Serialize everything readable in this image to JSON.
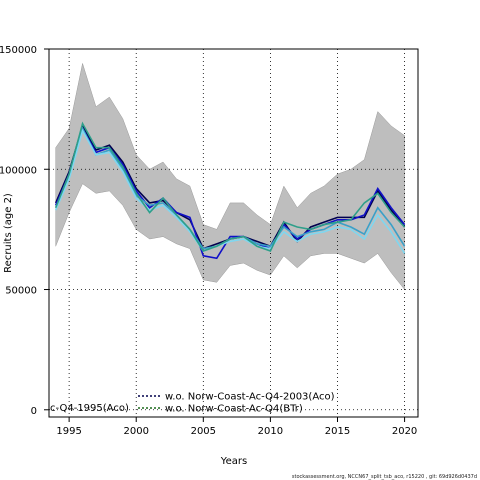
{
  "chart_data": {
    "type": "line",
    "title": "",
    "xlabel": "Years",
    "ylabel": "Recruits (age 2)",
    "xlim": [
      1993.5,
      2021
    ],
    "ylim": [
      -3000,
      150000
    ],
    "x_ticks": [
      1995,
      2000,
      2005,
      2010,
      2015,
      2020
    ],
    "y_ticks": [
      0,
      50000,
      100000,
      150000
    ],
    "grid": true,
    "years": [
      1994,
      1995,
      1996,
      1997,
      1998,
      1999,
      2000,
      2001,
      2002,
      2003,
      2004,
      2005,
      2006,
      2007,
      2008,
      2009,
      2010,
      2011,
      2012,
      2013,
      2014,
      2015,
      2016,
      2017,
      2018,
      2019,
      2020
    ],
    "band": {
      "color": "#bebebe",
      "upper": [
        109000,
        117000,
        144000,
        126000,
        130000,
        121000,
        106000,
        100000,
        103000,
        96000,
        93000,
        77000,
        75000,
        86000,
        86000,
        81000,
        77000,
        93000,
        84000,
        90000,
        93000,
        98000,
        100000,
        104000,
        124000,
        118000,
        114000
      ],
      "lower": [
        68000,
        82000,
        94000,
        90000,
        91000,
        85000,
        75000,
        71000,
        72000,
        69000,
        67000,
        54000,
        53000,
        60000,
        61000,
        58000,
        56000,
        64000,
        59000,
        64000,
        65000,
        65000,
        63000,
        61000,
        65000,
        57000,
        50000
      ]
    },
    "series": [
      {
        "color": "#00004d",
        "dash": "",
        "values": [
          86000,
          99000,
          118000,
          108000,
          110000,
          103000,
          92000,
          86000,
          87000,
          82000,
          79000,
          67000,
          69000,
          71000,
          72000,
          70000,
          68000,
          78000,
          70000,
          76000,
          78000,
          80000,
          80000,
          80000,
          91000,
          83000,
          76000
        ]
      },
      {
        "color": "#1010c8",
        "dash": "",
        "values": [
          85000,
          98000,
          117000,
          107000,
          109000,
          102000,
          91000,
          84000,
          88000,
          82000,
          80000,
          64000,
          63000,
          72000,
          72000,
          69000,
          67000,
          77000,
          71000,
          75000,
          77000,
          79000,
          79000,
          81000,
          92000,
          84000,
          77000
        ]
      },
      {
        "color": "#3aa0c8",
        "dash": "",
        "values": [
          84000,
          97000,
          117000,
          106000,
          108000,
          100000,
          89000,
          85000,
          86000,
          81000,
          75000,
          67000,
          68000,
          71000,
          72000,
          69000,
          68000,
          76000,
          72000,
          74000,
          75000,
          78000,
          76000,
          73000,
          84000,
          77000,
          68000
        ]
      },
      {
        "color": "#7fd7f0",
        "dash": "",
        "values": [
          83000,
          96000,
          116000,
          106000,
          107000,
          99000,
          88000,
          83000,
          85000,
          80000,
          74000,
          66000,
          68000,
          70000,
          71000,
          68000,
          67000,
          74000,
          70000,
          73000,
          74000,
          76000,
          75000,
          71000,
          81000,
          74000,
          65000
        ]
      },
      {
        "color": "#2e9f8a",
        "dash": "",
        "values": [
          84000,
          98000,
          119000,
          109000,
          109000,
          101000,
          90000,
          82000,
          88000,
          81000,
          75000,
          66000,
          68000,
          71000,
          72000,
          68000,
          66000,
          78000,
          76000,
          75000,
          77000,
          78000,
          79000,
          86000,
          90000,
          82000,
          76000
        ]
      }
    ],
    "legend": [
      {
        "label": "w.o. Norw-Coast-Ac-Q4-2003(Aco)",
        "color": "#00004d",
        "dash": "2,2"
      },
      {
        "label": "w.o. Norw-Coast-Ac-Q4(BTr)",
        "color": "#1a6b1a",
        "dash": "2,2"
      }
    ],
    "legend_left_fragment": "c-Q4-1995(Aco)"
  },
  "footer": "stockassessment.org, NCCN67_split_tsb_aco, r15220 , git: 69d926d0437d"
}
